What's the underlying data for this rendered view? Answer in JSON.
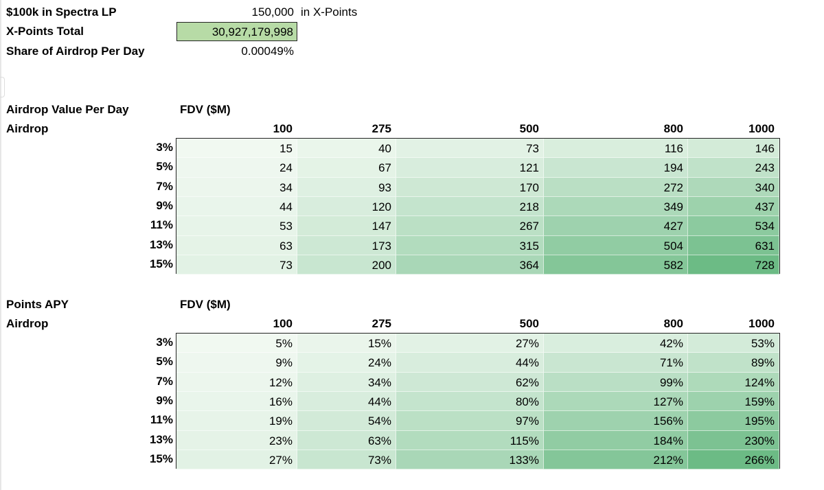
{
  "summary": {
    "lp_label": "$100k in Spectra LP",
    "lp_value": "150,000",
    "lp_unit": "in X-Points",
    "total_label": "X-Points Total",
    "total_value": "30,927,179,998",
    "share_label": "Share of Airdrop Per Day",
    "share_value": "0.00049%"
  },
  "colors": {
    "selected_cell": "#b7dba6",
    "heat_low": "#f6fbf5",
    "heat_high": "#6cbb85"
  },
  "tables": [
    {
      "title": "Airdrop Value Per Day",
      "axis_label": "FDV ($M)",
      "row_axis_label": "Airdrop",
      "columns": [
        "100",
        "275",
        "500",
        "800",
        "1000"
      ],
      "rows": [
        {
          "label": "3%",
          "values": [
            "15",
            "40",
            "73",
            "116",
            "146"
          ]
        },
        {
          "label": "5%",
          "values": [
            "24",
            "67",
            "121",
            "194",
            "243"
          ]
        },
        {
          "label": "7%",
          "values": [
            "34",
            "93",
            "170",
            "272",
            "340"
          ]
        },
        {
          "label": "9%",
          "values": [
            "44",
            "120",
            "218",
            "349",
            "437"
          ]
        },
        {
          "label": "11%",
          "values": [
            "53",
            "147",
            "267",
            "427",
            "534"
          ]
        },
        {
          "label": "13%",
          "values": [
            "63",
            "173",
            "315",
            "504",
            "631"
          ]
        },
        {
          "label": "15%",
          "values": [
            "73",
            "200",
            "364",
            "582",
            "728"
          ]
        }
      ],
      "max": 728
    },
    {
      "title": "Points APY",
      "axis_label": "FDV ($M)",
      "row_axis_label": "Airdrop",
      "columns": [
        "100",
        "275",
        "500",
        "800",
        "1000"
      ],
      "rows": [
        {
          "label": "3%",
          "values": [
            "5%",
            "15%",
            "27%",
            "42%",
            "53%"
          ]
        },
        {
          "label": "5%",
          "values": [
            "9%",
            "24%",
            "44%",
            "71%",
            "89%"
          ]
        },
        {
          "label": "7%",
          "values": [
            "12%",
            "34%",
            "62%",
            "99%",
            "124%"
          ]
        },
        {
          "label": "9%",
          "values": [
            "16%",
            "44%",
            "80%",
            "127%",
            "159%"
          ]
        },
        {
          "label": "11%",
          "values": [
            "19%",
            "54%",
            "97%",
            "156%",
            "195%"
          ]
        },
        {
          "label": "13%",
          "values": [
            "23%",
            "63%",
            "115%",
            "184%",
            "230%"
          ]
        },
        {
          "label": "15%",
          "values": [
            "27%",
            "73%",
            "133%",
            "212%",
            "266%"
          ]
        }
      ],
      "max": 266
    }
  ]
}
